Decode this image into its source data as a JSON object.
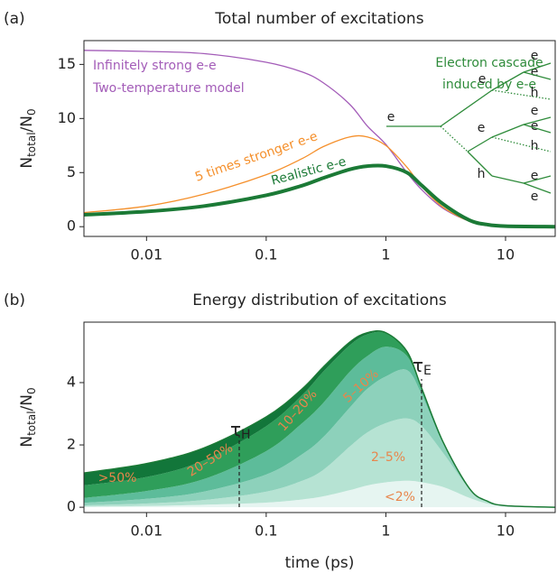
{
  "chart_data": [
    {
      "type": "line",
      "panel_label": "(a)",
      "title": "Total number of excitations",
      "ylabel": [
        "N",
        "total",
        "/N",
        "0"
      ],
      "xscale": "log",
      "xlim": [
        0.003,
        26
      ],
      "xticks": [
        0.01,
        0.1,
        1,
        10
      ],
      "ylim": [
        -0.9,
        17.2
      ],
      "yticks": [
        0,
        5,
        10,
        15
      ],
      "x": [
        0.003,
        0.01,
        0.03,
        0.1,
        0.2,
        0.3,
        0.5,
        0.7,
        1,
        1.5,
        2,
        3,
        5,
        7,
        10,
        26
      ],
      "series": [
        {
          "name": "Infinitely strong e-e",
          "color": "#a35cb8",
          "values": [
            16.3,
            16.2,
            16.0,
            15.2,
            14.3,
            13.3,
            11.3,
            9.3,
            7.6,
            5.0,
            3.4,
            1.7,
            0.5,
            0.15,
            0.05,
            0
          ]
        },
        {
          "name": "5 times stronger e-e",
          "color": "#f5902c",
          "values": [
            1.3,
            1.9,
            3.0,
            4.8,
            6.3,
            7.4,
            8.3,
            8.3,
            7.5,
            5.5,
            3.7,
            1.8,
            0.5,
            0.15,
            0.05,
            0
          ]
        },
        {
          "name": "Realistic e-e",
          "color": "#1b7a36",
          "values": [
            1.1,
            1.4,
            1.9,
            2.9,
            3.8,
            4.5,
            5.3,
            5.6,
            5.6,
            5.0,
            3.8,
            2.1,
            0.6,
            0.2,
            0.05,
            0
          ]
        }
      ],
      "annotations": [
        "Two-temperature model"
      ],
      "inset": {
        "title": [
          "Electron cascade",
          "induced by e-e"
        ],
        "color": "#2e8b3a",
        "labels": [
          "e",
          "e",
          "e",
          "h",
          "e",
          "e",
          "h",
          "e",
          "e",
          "h",
          "e",
          "e"
        ]
      }
    },
    {
      "type": "stacked_area",
      "panel_label": "(b)",
      "title": "Energy distribution of excitations",
      "ylabel": [
        "N",
        "total",
        "/N",
        "0"
      ],
      "xlabel": "time (ps)",
      "xscale": "log",
      "xlim": [
        0.003,
        26
      ],
      "xticks": [
        0.01,
        0.1,
        1,
        10
      ],
      "ylim": [
        -0.17,
        5.94
      ],
      "yticks": [
        0,
        2,
        4
      ],
      "outline_color": "#1b7a36",
      "label_color": "#e8864c",
      "x": [
        0.003,
        0.01,
        0.03,
        0.1,
        0.2,
        0.3,
        0.5,
        0.7,
        1,
        1.5,
        2,
        3,
        5,
        7,
        10,
        26
      ],
      "series": [
        {
          "name": "<2%",
          "color": "#e6f5f1",
          "values": [
            0.02,
            0.04,
            0.08,
            0.15,
            0.25,
            0.35,
            0.55,
            0.7,
            0.8,
            0.85,
            0.8,
            0.65,
            0.3,
            0.12,
            0.04,
            0
          ]
        },
        {
          "name": "2–5%",
          "color": "#b6e3d3",
          "values": [
            0.04,
            0.08,
            0.15,
            0.35,
            0.6,
            0.85,
            1.4,
            1.7,
            1.9,
            2.0,
            1.8,
            1.1,
            0.28,
            0.08,
            0.01,
            0
          ]
        },
        {
          "name": "5–10%",
          "color": "#8dd1bb",
          "values": [
            0.08,
            0.15,
            0.27,
            0.55,
            0.85,
            1.05,
            1.25,
            1.4,
            1.5,
            1.55,
            1.0,
            0.3,
            0.02,
            0,
            0,
            0
          ]
        },
        {
          "name": "10–20%",
          "color": "#5dbc9a",
          "values": [
            0.16,
            0.25,
            0.4,
            0.75,
            1.0,
            1.1,
            1.15,
            1.05,
            0.95,
            0.45,
            0.15,
            0.05,
            0,
            0,
            0,
            0
          ]
        },
        {
          "name": "20–50%",
          "color": "#2f9e5a",
          "values": [
            0.4,
            0.45,
            0.6,
            0.8,
            0.9,
            1.0,
            0.85,
            0.7,
            0.43,
            0.14,
            0.05,
            0,
            0,
            0,
            0,
            0
          ]
        },
        {
          "name": ">50%",
          "color": "#12763a",
          "values": [
            0.4,
            0.43,
            0.4,
            0.3,
            0.2,
            0.15,
            0.1,
            0.05,
            0.02,
            0.01,
            0,
            0,
            0,
            0,
            0,
            0
          ]
        }
      ],
      "annotations": [
        {
          "symbol": "τ",
          "sub": "H"
        },
        {
          "symbol": "τ",
          "sub": "E"
        }
      ]
    }
  ]
}
